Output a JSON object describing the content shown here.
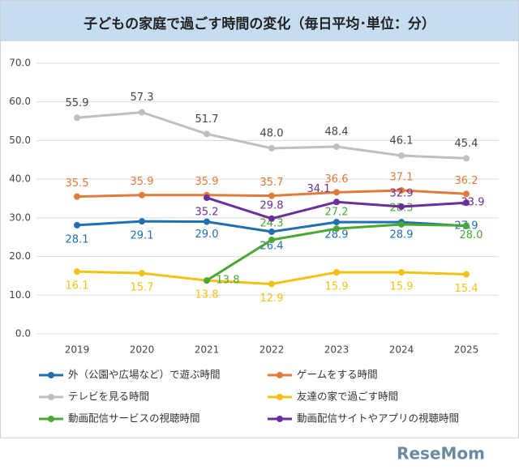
{
  "chart_data": {
    "type": "line",
    "title": "子どもの家庭で過ごす時間の変化（毎日平均･単位：分）",
    "watermark": "ReseMom",
    "categories": [
      "2019",
      "2020",
      "2021",
      "2022",
      "2023",
      "2024",
      "2025"
    ],
    "ylim": [
      0,
      70
    ],
    "yticks": [
      {
        "value": 0,
        "label": "0.0"
      },
      {
        "value": 10,
        "label": "10.0"
      },
      {
        "value": 20,
        "label": "20.0"
      },
      {
        "value": 30,
        "label": "30.0"
      },
      {
        "value": 40,
        "label": "40.0"
      },
      {
        "value": 50,
        "label": "50.0"
      },
      {
        "value": 60,
        "label": "60.0"
      },
      {
        "value": 70,
        "label": "70.0"
      }
    ],
    "grid": true,
    "series": [
      {
        "name": "外（公園や広場など）で遊ぶ時間",
        "color": "#1f6fb2",
        "values": [
          28.1,
          29.1,
          29.0,
          26.4,
          28.9,
          28.9,
          27.9
        ],
        "value_labels": [
          "28.1",
          "29.1",
          "29.0",
          "26.4",
          "28.9",
          "28.9",
          "27.9"
        ]
      },
      {
        "name": "ゲームをする時間",
        "color": "#e07b39",
        "values": [
          35.5,
          35.9,
          35.9,
          35.7,
          36.6,
          37.1,
          36.2
        ],
        "value_labels": [
          "35.5",
          "35.9",
          "35.9",
          "35.7",
          "36.6",
          "37.1",
          "36.2"
        ]
      },
      {
        "name": "テレビを見る時間",
        "color": "#bfbfbf",
        "values": [
          55.9,
          57.3,
          51.7,
          48.0,
          48.4,
          46.1,
          45.4
        ],
        "value_labels": [
          "55.9",
          "57.3",
          "51.7",
          "48.0",
          "48.4",
          "46.1",
          "45.4"
        ]
      },
      {
        "name": "友達の家で過ごす時間",
        "color": "#f2c114",
        "values": [
          16.1,
          15.7,
          13.8,
          12.9,
          15.9,
          15.9,
          15.4
        ],
        "value_labels": [
          "16.1",
          "15.7",
          "13.8",
          "12.9",
          "15.9",
          "15.9",
          "15.4"
        ]
      },
      {
        "name": "動画配信サービスの視聴時間",
        "color": "#4aa832",
        "values": [
          null,
          null,
          13.8,
          24.3,
          27.2,
          28.3,
          28.0
        ],
        "value_labels": [
          null,
          null,
          "13.8",
          "24.3",
          "27.2",
          "28.3",
          "28.0"
        ]
      },
      {
        "name": "動画配信サイトやアプリの視聴時間",
        "color": "#6a2f9a",
        "values": [
          null,
          null,
          35.2,
          29.8,
          34.1,
          32.9,
          33.9
        ],
        "value_labels": [
          null,
          null,
          "35.2",
          "29.8",
          "34.1",
          "32.9",
          "33.9"
        ]
      }
    ]
  }
}
